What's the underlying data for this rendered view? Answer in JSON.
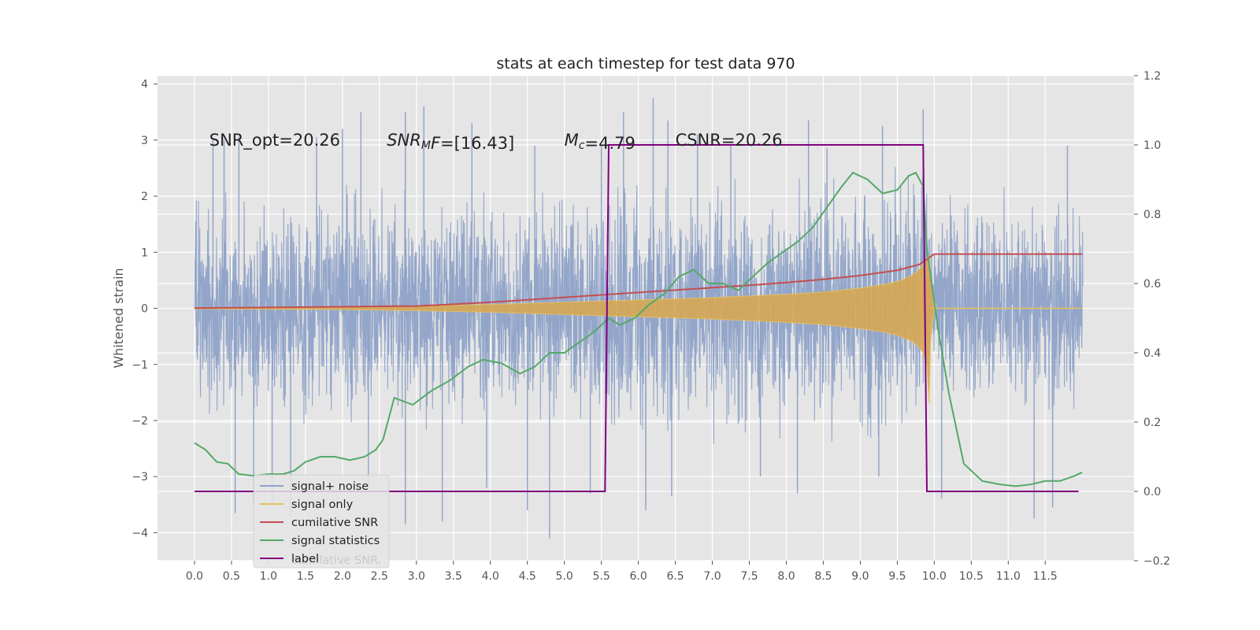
{
  "chart_data": {
    "type": "line",
    "title": "stats at each timestep for test data 970",
    "ylabel": "Whitened strain",
    "xlim": [
      -0.5,
      12.7
    ],
    "ylim": [
      -4.5,
      4.15
    ],
    "y2lim": [
      -0.2,
      1.2
    ],
    "xticks": [
      0.0,
      0.5,
      1.0,
      1.5,
      2.0,
      2.5,
      3.0,
      3.5,
      4.0,
      4.5,
      5.0,
      5.5,
      6.0,
      6.5,
      7.0,
      7.5,
      8.0,
      8.5,
      9.0,
      9.5,
      10.0,
      10.5,
      11.0,
      11.5
    ],
    "xtick_labels": [
      "0.0",
      "0.5",
      "1.0",
      "1.5",
      "2.0",
      "2.5",
      "3.0",
      "3.5",
      "4.0",
      "4.5",
      "5.0",
      "5.5",
      "6.0",
      "6.5",
      "7.0",
      "7.5",
      "8.0",
      "8.5",
      "9.0",
      "9.5",
      "10.0",
      "10.5",
      "11.0",
      "11.5"
    ],
    "yticks": [
      -4,
      -3,
      -2,
      -1,
      0,
      1,
      2,
      3,
      4
    ],
    "ytick_labels": [
      "−4",
      "−3",
      "−2",
      "−1",
      "0",
      "1",
      "2",
      "3",
      "4"
    ],
    "y2ticks": [
      -0.2,
      0.0,
      0.2,
      0.4,
      0.6,
      0.8,
      1.0,
      1.2
    ],
    "y2tick_labels": [
      "−0.2",
      "0.0",
      "0.2",
      "0.4",
      "0.6",
      "0.8",
      "1.0",
      "1.2"
    ],
    "grid": true,
    "legend_position": "lower-left",
    "annotations": [
      {
        "x": 0.2,
        "y": 3.0,
        "parts": [
          {
            "t": "SNR_opt=20.26"
          }
        ]
      },
      {
        "x": 2.6,
        "y": 3.0,
        "parts": [
          {
            "t": "SNR",
            "i": true
          },
          {
            "t": "M",
            "i": true,
            "sub": true
          },
          {
            "t": "F",
            "i": true
          },
          {
            "t": "=[16.43]"
          }
        ]
      },
      {
        "x": 5.0,
        "y": 3.0,
        "parts": [
          {
            "t": "M",
            "i": true
          },
          {
            "t": "c",
            "i": true,
            "sub": true
          },
          {
            "t": "=4.79"
          }
        ]
      },
      {
        "x": 6.5,
        "y": 3.0,
        "parts": [
          {
            "t": "CSNR=20.26"
          }
        ]
      }
    ],
    "noise_envelope": {
      "x": [
        0,
        1,
        2,
        3,
        4,
        5,
        6,
        7,
        8,
        9,
        9.9,
        10,
        11,
        12
      ],
      "upper": [
        2.5,
        2.6,
        2.6,
        2.7,
        2.7,
        2.8,
        2.9,
        2.9,
        3.0,
        3.1,
        3.3,
        2.6,
        2.5,
        2.5
      ],
      "lower": [
        -2.5,
        -2.6,
        -2.6,
        -2.7,
        -2.7,
        -2.8,
        -2.9,
        -2.9,
        -3.0,
        -3.1,
        -3.3,
        -2.6,
        -2.5,
        -2.5
      ]
    },
    "series": [
      {
        "name": "signal+ noise",
        "color": "#8ea2c8",
        "kind": "noise",
        "x_start": 0.0,
        "x_end": 12.0,
        "peaks_up": [
          [
            0.4,
            3.0
          ],
          [
            0.6,
            3.05
          ],
          [
            1.65,
            3.05
          ],
          [
            2.0,
            3.2
          ],
          [
            2.25,
            3.5
          ],
          [
            2.85,
            3.5
          ],
          [
            3.1,
            3.6
          ],
          [
            3.75,
            3.3
          ],
          [
            5.5,
            2.9
          ],
          [
            5.8,
            3.5
          ],
          [
            6.2,
            3.75
          ],
          [
            6.4,
            3.35
          ],
          [
            6.8,
            3.1
          ],
          [
            7.25,
            2.9
          ],
          [
            8.3,
            3.35
          ],
          [
            8.55,
            2.85
          ],
          [
            9.3,
            3.25
          ],
          [
            9.85,
            3.55
          ],
          [
            11.8,
            2.9
          ],
          [
            0.25,
            3.0
          ],
          [
            4.6,
            2.9
          ]
        ],
        "peaks_down": [
          [
            0.55,
            -3.65
          ],
          [
            0.8,
            -3.5
          ],
          [
            1.3,
            -3.7
          ],
          [
            2.35,
            -3.1
          ],
          [
            2.85,
            -3.85
          ],
          [
            3.35,
            -3.8
          ],
          [
            4.5,
            -3.6
          ],
          [
            4.8,
            -4.1
          ],
          [
            5.35,
            -3.3
          ],
          [
            6.1,
            -3.6
          ],
          [
            6.45,
            -3.35
          ],
          [
            7.65,
            -3.0
          ],
          [
            8.15,
            -3.3
          ],
          [
            9.25,
            -3.0
          ],
          [
            10.1,
            -3.4
          ],
          [
            11.35,
            -3.75
          ],
          [
            11.6,
            -3.55
          ],
          [
            1.05,
            -3.45
          ],
          [
            3.95,
            -3.2
          ]
        ]
      },
      {
        "name": "signal only",
        "color": "#e8c15a",
        "fill": "#d7a854",
        "axis": "left",
        "x": [
          0.0,
          1.0,
          2.0,
          3.0,
          4.0,
          5.0,
          6.0,
          7.0,
          8.0,
          8.5,
          9.0,
          9.3,
          9.5,
          9.6,
          9.7,
          9.75,
          9.8,
          9.85,
          9.9,
          9.93,
          9.95,
          10.0,
          12.0
        ],
        "upper": [
          0.01,
          0.015,
          0.02,
          0.04,
          0.07,
          0.11,
          0.15,
          0.19,
          0.25,
          0.29,
          0.36,
          0.42,
          0.48,
          0.53,
          0.59,
          0.64,
          0.7,
          0.79,
          0.9,
          0.95,
          0.6,
          0.0,
          0.0
        ],
        "lower": [
          -0.01,
          -0.015,
          -0.02,
          -0.04,
          -0.07,
          -0.11,
          -0.15,
          -0.19,
          -0.25,
          -0.29,
          -0.36,
          -0.42,
          -0.48,
          -0.53,
          -0.59,
          -0.64,
          -0.7,
          -0.8,
          -1.0,
          -1.7,
          -0.6,
          0.0,
          0.0
        ]
      },
      {
        "name": "cumilative SNR",
        "color": "#c44e52",
        "axis": "right",
        "x": [
          0.0,
          1.0,
          2.0,
          3.0,
          3.5,
          4.0,
          4.5,
          5.0,
          5.5,
          6.0,
          6.5,
          7.0,
          7.5,
          8.0,
          8.5,
          9.0,
          9.5,
          9.8,
          9.9,
          10.0,
          12.0
        ],
        "values": [
          0.529,
          0.531,
          0.533,
          0.535,
          0.54,
          0.546,
          0.553,
          0.56,
          0.567,
          0.574,
          0.581,
          0.588,
          0.595,
          0.603,
          0.612,
          0.623,
          0.638,
          0.655,
          0.67,
          0.685,
          0.685
        ]
      },
      {
        "name": "signal statistics",
        "color": "#55a868",
        "axis": "right",
        "x": [
          0.0,
          0.15,
          0.3,
          0.45,
          0.6,
          0.8,
          1.0,
          1.2,
          1.35,
          1.5,
          1.7,
          1.9,
          2.1,
          2.3,
          2.45,
          2.55,
          2.7,
          2.95,
          3.2,
          3.45,
          3.7,
          3.9,
          4.15,
          4.4,
          4.6,
          4.8,
          5.0,
          5.2,
          5.4,
          5.6,
          5.75,
          5.95,
          6.15,
          6.35,
          6.55,
          6.75,
          6.95,
          7.15,
          7.35,
          7.55,
          7.75,
          7.95,
          8.15,
          8.35,
          8.55,
          8.75,
          8.9,
          9.1,
          9.3,
          9.5,
          9.65,
          9.75,
          9.85,
          9.9,
          10.05,
          10.2,
          10.4,
          10.65,
          10.9,
          11.1,
          11.3,
          11.5,
          11.7,
          11.9,
          12.0
        ],
        "values": [
          0.14,
          0.12,
          0.085,
          0.08,
          0.05,
          0.045,
          0.05,
          0.05,
          0.06,
          0.085,
          0.1,
          0.1,
          0.09,
          0.1,
          0.12,
          0.15,
          0.27,
          0.25,
          0.29,
          0.32,
          0.36,
          0.38,
          0.37,
          0.34,
          0.36,
          0.4,
          0.4,
          0.43,
          0.46,
          0.5,
          0.48,
          0.5,
          0.54,
          0.57,
          0.62,
          0.64,
          0.6,
          0.6,
          0.58,
          0.62,
          0.66,
          0.69,
          0.72,
          0.76,
          0.82,
          0.88,
          0.92,
          0.9,
          0.86,
          0.87,
          0.91,
          0.92,
          0.88,
          0.7,
          0.47,
          0.28,
          0.08,
          0.03,
          0.02,
          0.015,
          0.02,
          0.03,
          0.03,
          0.045,
          0.055
        ]
      },
      {
        "name": "label",
        "color": "#800080",
        "axis": "right",
        "x": [
          0.0,
          5.55,
          5.6,
          9.85,
          9.9,
          11.95
        ],
        "values": [
          0.0,
          0.0,
          1.0,
          1.0,
          0.0,
          0.0
        ]
      }
    ],
    "legend_ghost_text": "cumilative SNR"
  }
}
